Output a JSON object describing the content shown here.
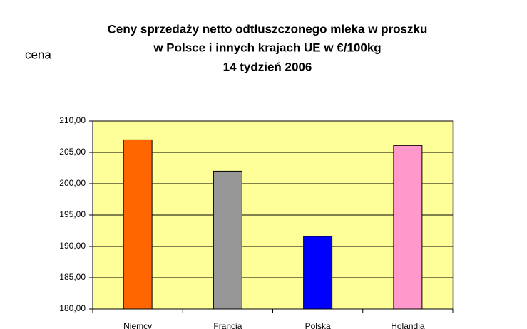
{
  "chart_data": {
    "type": "bar",
    "title": [
      "Ceny sprzedaży netto odtłuszczonego mleka w proszku",
      "w Polsce i innych krajach UE w €/100kg",
      "14 tydzień 2006"
    ],
    "ylabel": "cena",
    "categories": [
      "Niemcy",
      "Francja",
      "Polska",
      "Holandia"
    ],
    "values": [
      207,
      202,
      191.6,
      206.1
    ],
    "colors": [
      "#ff6600",
      "#969696",
      "#0000ff",
      "#ff99cc"
    ],
    "ylim": [
      180,
      210
    ],
    "yticks": [
      {
        "value": 180,
        "label": "180,00"
      },
      {
        "value": 185,
        "label": "185,00"
      },
      {
        "value": 190,
        "label": "190,00"
      },
      {
        "value": 195,
        "label": "195,00"
      },
      {
        "value": 200,
        "label": "200,00"
      },
      {
        "value": 205,
        "label": "205,00"
      },
      {
        "value": 210,
        "label": "210,00"
      }
    ],
    "grid": true,
    "plot_background": "#ffff99"
  }
}
